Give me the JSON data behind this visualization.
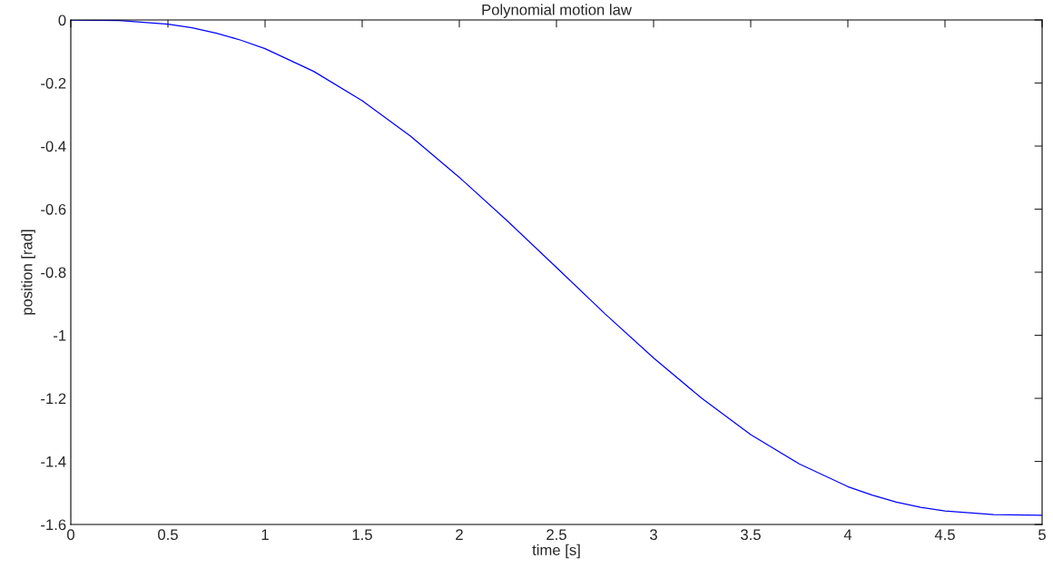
{
  "chart_data": {
    "type": "line",
    "title": "Polynomial motion law",
    "xlabel": "time [s]",
    "ylabel": "position [rad]",
    "x": [
      0,
      0.25,
      0.5,
      0.625,
      0.75,
      0.875,
      1,
      1.25,
      1.5,
      1.75,
      2,
      2.25,
      2.5,
      2.75,
      3,
      3.25,
      3.5,
      3.75,
      4,
      4.125,
      4.25,
      4.375,
      4.5,
      4.75,
      5
    ],
    "series": [
      {
        "color": "#0000ff",
        "values": [
          0,
          -0.002,
          -0.013,
          -0.025,
          -0.042,
          -0.064,
          -0.091,
          -0.163,
          -0.256,
          -0.369,
          -0.499,
          -0.639,
          -0.785,
          -0.932,
          -1.072,
          -1.201,
          -1.315,
          -1.408,
          -1.48,
          -1.507,
          -1.529,
          -1.546,
          -1.557,
          -1.569,
          -1.571
        ]
      }
    ],
    "xlim": [
      0,
      5
    ],
    "ylim": [
      -1.6,
      0
    ],
    "xticks": [
      0,
      0.5,
      1,
      1.5,
      2,
      2.5,
      3,
      3.5,
      4,
      4.5,
      5
    ],
    "yticks": [
      {
        "value": -1.6,
        "label": "-1.6"
      },
      {
        "value": -1.4,
        "label": "-1.4"
      },
      {
        "value": -1.2,
        "label": "-1.2"
      },
      {
        "value": -1,
        "label": "-1"
      },
      {
        "value": -0.8,
        "label": "-0.8"
      },
      {
        "value": -0.6,
        "label": "-0.6"
      },
      {
        "value": -0.4,
        "label": "-0.4"
      },
      {
        "value": -0.2,
        "label": "-0.2"
      },
      0
    ],
    "grid": false,
    "legend": false,
    "marker": "none",
    "line_style": "solid"
  }
}
